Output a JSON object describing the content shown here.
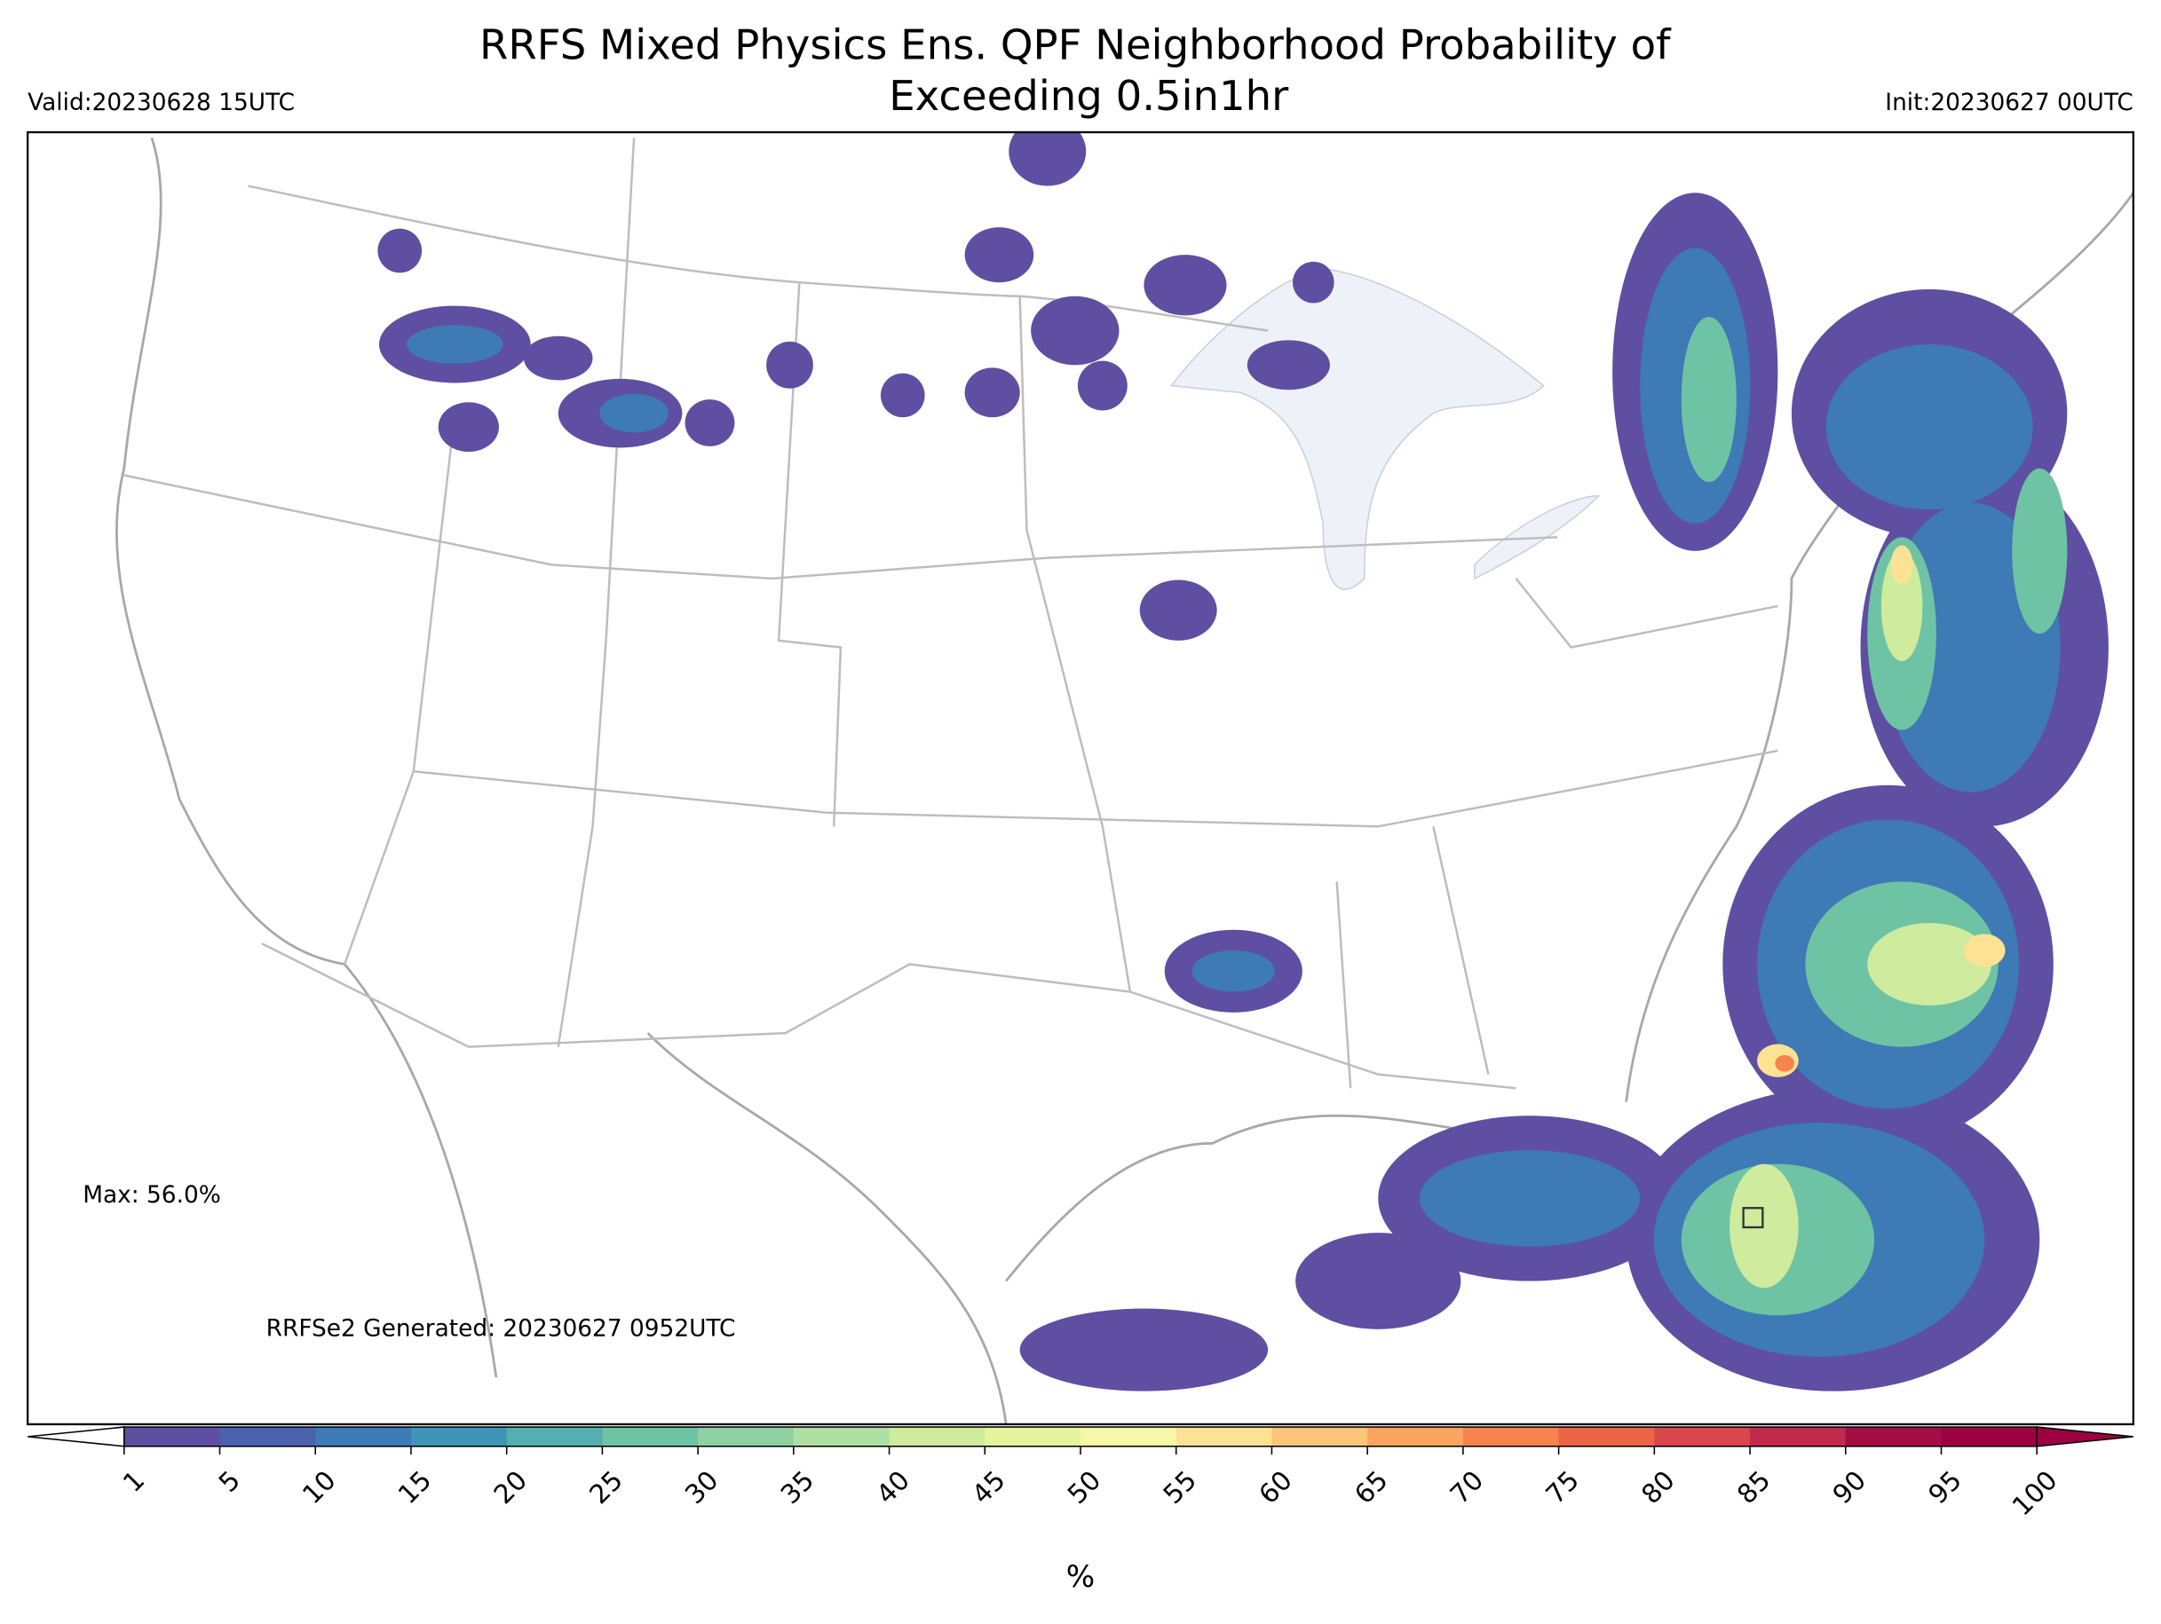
{
  "title": [
    "RRFS Mixed Physics Ens. QPF Neighborhood Probability of",
    "Exceeding 0.5in1hr"
  ],
  "valid": "Valid:20230628 15UTC",
  "init": "Init:20230627 00UTC",
  "max_label": "Max: 56.0%",
  "generated": "RRFSe2 Generated: 20230627 0952UTC",
  "colorbar": {
    "label": "%",
    "ticks": [
      1,
      5,
      10,
      15,
      20,
      25,
      30,
      35,
      40,
      45,
      50,
      55,
      60,
      65,
      70,
      75,
      80,
      85,
      90,
      95,
      100
    ],
    "colors": [
      "#5e4fa2",
      "#4b62ae",
      "#3d7ab6",
      "#3f94b8",
      "#55aeb0",
      "#6ec3a4",
      "#8fd1a3",
      "#b0dfa2",
      "#ceeb9e",
      "#e6f59c",
      "#f7f7aa",
      "#fde294",
      "#fdc578",
      "#fca55f",
      "#f7834f",
      "#eb6546",
      "#d9464c",
      "#c2294a",
      "#a50d45",
      "#9e0142"
    ],
    "over_color": "#9e0142",
    "under_color": "#ffffff"
  }
}
